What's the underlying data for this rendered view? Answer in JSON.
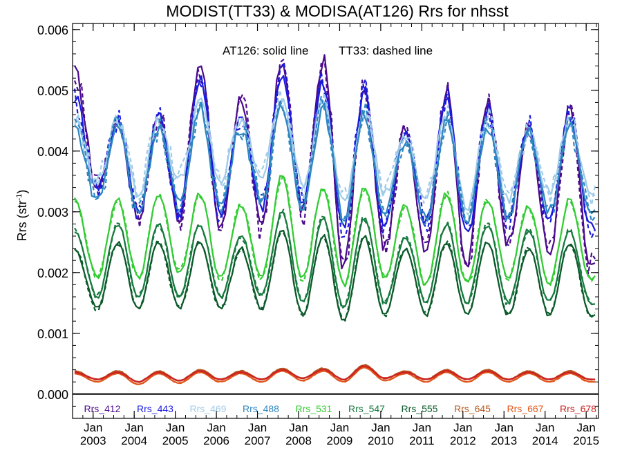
{
  "chart_data": {
    "type": "line",
    "title": "MODIST(TT33) & MODISA(AT126)  Rrs for nhsst",
    "annotation_solid": "AT126: solid line",
    "annotation_dashed": "TT33: dashed line",
    "ylabel_main": "Rrs (str",
    "ylabel_sup": "-1",
    "ylabel_close": ")",
    "xlim": [
      2002.5,
      2015.3
    ],
    "ylim": [
      -0.0004,
      0.0061
    ],
    "y_ticks": [
      {
        "value": 0.0,
        "label": "0.000"
      },
      {
        "value": 0.001,
        "label": "0.001"
      },
      {
        "value": 0.002,
        "label": "0.002"
      },
      {
        "value": 0.003,
        "label": "0.003"
      },
      {
        "value": 0.004,
        "label": "0.004"
      },
      {
        "value": 0.005,
        "label": "0.005"
      },
      {
        "value": 0.006,
        "label": "0.006"
      }
    ],
    "x_ticks": [
      {
        "value": 2003.0,
        "month": "Jan",
        "year": "2003"
      },
      {
        "value": 2004.0,
        "month": "Jan",
        "year": "2004"
      },
      {
        "value": 2005.0,
        "month": "Jan",
        "year": "2005"
      },
      {
        "value": 2006.0,
        "month": "Jan",
        "year": "2006"
      },
      {
        "value": 2007.0,
        "month": "Jan",
        "year": "2007"
      },
      {
        "value": 2008.0,
        "month": "Jan",
        "year": "2008"
      },
      {
        "value": 2009.0,
        "month": "Jan",
        "year": "2009"
      },
      {
        "value": 2010.0,
        "month": "Jan",
        "year": "2010"
      },
      {
        "value": 2011.0,
        "month": "Jan",
        "year": "2011"
      },
      {
        "value": 2012.0,
        "month": "Jan",
        "year": "2012"
      },
      {
        "value": 2013.0,
        "month": "Jan",
        "year": "2013"
      },
      {
        "value": 2014.0,
        "month": "Jan",
        "year": "2014"
      },
      {
        "value": 2015.0,
        "month": "Jan",
        "year": "2015"
      }
    ],
    "x_minor_step": 0.25,
    "y_minor_step": 0.0002,
    "zero_line": 0.0,
    "series": [
      {
        "name": "Rrs_412",
        "color": "#4b0a8c",
        "peak_years": [
          2002.55,
          2003.6,
          2004.6,
          2005.6,
          2006.6,
          2007.6,
          2008.6,
          2009.6,
          2010.6,
          2011.6,
          2012.6,
          2013.6,
          2014.6
        ],
        "peak_values": [
          0.0053,
          0.0045,
          0.0046,
          0.0054,
          0.0049,
          0.0055,
          0.0055,
          0.005,
          0.0044,
          0.005,
          0.0048,
          0.0044,
          0.0047
        ],
        "trough_years": [
          2003.1,
          2004.1,
          2005.1,
          2006.1,
          2007.1,
          2008.1,
          2009.1,
          2010.1,
          2011.1,
          2012.1,
          2013.1,
          2014.1,
          2015.1
        ],
        "trough_values": [
          0.0034,
          0.0029,
          0.0029,
          0.0027,
          0.0027,
          0.003,
          0.0021,
          0.0024,
          0.0024,
          0.0021,
          0.0025,
          0.0023,
          0.0021
        ]
      },
      {
        "name": "Rrs_443",
        "color": "#1a1adc",
        "peak_years": [
          2002.55,
          2003.6,
          2004.6,
          2005.6,
          2006.6,
          2007.6,
          2008.6,
          2009.6,
          2010.6,
          2011.6,
          2012.6,
          2013.6,
          2014.6
        ],
        "peak_values": [
          0.0049,
          0.0045,
          0.0046,
          0.0052,
          0.0046,
          0.0053,
          0.0051,
          0.005,
          0.0043,
          0.0049,
          0.0047,
          0.0044,
          0.0046
        ],
        "trough_years": [
          2003.1,
          2004.1,
          2005.1,
          2006.1,
          2007.1,
          2008.1,
          2009.1,
          2010.1,
          2011.1,
          2012.1,
          2013.1,
          2014.1,
          2015.1
        ],
        "trough_values": [
          0.0034,
          0.003,
          0.003,
          0.003,
          0.0031,
          0.0031,
          0.0027,
          0.0028,
          0.0028,
          0.0026,
          0.0029,
          0.0028,
          0.0028
        ]
      },
      {
        "name": "Rrs_469",
        "color": "#9fcbe8",
        "peak_years": [
          2002.55,
          2003.6,
          2004.6,
          2005.6,
          2006.6,
          2007.6,
          2008.6,
          2009.6,
          2010.6,
          2011.6,
          2012.6,
          2013.6,
          2014.6
        ],
        "peak_values": [
          0.0045,
          0.0045,
          0.0045,
          0.0048,
          0.0045,
          0.0049,
          0.0048,
          0.0047,
          0.0042,
          0.0046,
          0.0045,
          0.0043,
          0.0045
        ],
        "trough_years": [
          2003.1,
          2004.1,
          2005.1,
          2006.1,
          2007.1,
          2008.1,
          2009.1,
          2010.1,
          2011.1,
          2012.1,
          2013.1,
          2014.1,
          2015.1
        ],
        "trough_values": [
          0.0035,
          0.0033,
          0.0035,
          0.0035,
          0.0036,
          0.0034,
          0.0032,
          0.0033,
          0.0032,
          0.0031,
          0.0032,
          0.0033,
          0.0033
        ]
      },
      {
        "name": "Rrs_488",
        "color": "#2e86c1",
        "peak_years": [
          2002.55,
          2003.6,
          2004.6,
          2005.6,
          2006.6,
          2007.6,
          2008.6,
          2009.6,
          2010.6,
          2011.6,
          2012.6,
          2013.6,
          2014.6
        ],
        "peak_values": [
          0.0044,
          0.0044,
          0.0044,
          0.0047,
          0.0044,
          0.0047,
          0.0047,
          0.0046,
          0.0041,
          0.0045,
          0.0044,
          0.0043,
          0.0044
        ],
        "trough_years": [
          2003.1,
          2004.1,
          2005.1,
          2006.1,
          2007.1,
          2008.1,
          2009.1,
          2010.1,
          2011.1,
          2012.1,
          2013.1,
          2014.1,
          2015.1
        ],
        "trough_values": [
          0.0032,
          0.003,
          0.0031,
          0.0031,
          0.0032,
          0.0031,
          0.0029,
          0.003,
          0.0029,
          0.0028,
          0.0029,
          0.003,
          0.003
        ]
      },
      {
        "name": "Rrs_531",
        "color": "#33cc33",
        "peak_years": [
          2002.55,
          2003.6,
          2004.6,
          2005.6,
          2006.6,
          2007.6,
          2008.6,
          2009.6,
          2010.6,
          2011.6,
          2012.6,
          2013.6,
          2014.6
        ],
        "peak_values": [
          0.0032,
          0.0032,
          0.0033,
          0.0033,
          0.0031,
          0.0036,
          0.0034,
          0.0034,
          0.0031,
          0.0033,
          0.0032,
          0.0031,
          0.0032
        ],
        "trough_years": [
          2003.1,
          2004.1,
          2005.1,
          2006.1,
          2007.1,
          2008.1,
          2009.1,
          2010.1,
          2011.1,
          2012.1,
          2013.1,
          2014.1,
          2015.1
        ],
        "trough_values": [
          0.0019,
          0.0019,
          0.002,
          0.0019,
          0.0019,
          0.0019,
          0.0018,
          0.0019,
          0.0018,
          0.0018,
          0.0019,
          0.0018,
          0.0019
        ]
      },
      {
        "name": "Rrs_547",
        "color": "#167a3e",
        "peak_years": [
          2002.55,
          2003.6,
          2004.6,
          2005.6,
          2006.6,
          2007.6,
          2008.6,
          2009.6,
          2010.6,
          2011.6,
          2012.6,
          2013.6,
          2014.6
        ],
        "peak_values": [
          0.0027,
          0.0028,
          0.0028,
          0.0028,
          0.0026,
          0.003,
          0.0029,
          0.0029,
          0.0026,
          0.0028,
          0.0028,
          0.0027,
          0.0027
        ],
        "trough_years": [
          2003.1,
          2004.1,
          2005.1,
          2006.1,
          2007.1,
          2008.1,
          2009.1,
          2010.1,
          2011.1,
          2012.1,
          2013.1,
          2014.1,
          2015.1
        ],
        "trough_values": [
          0.0016,
          0.0016,
          0.0016,
          0.0016,
          0.0016,
          0.0015,
          0.0014,
          0.0015,
          0.0015,
          0.0015,
          0.0015,
          0.0015,
          0.0015
        ]
      },
      {
        "name": "Rrs_555",
        "color": "#0b5a2a",
        "peak_years": [
          2002.55,
          2003.6,
          2004.6,
          2005.6,
          2006.6,
          2007.6,
          2008.6,
          2009.6,
          2010.6,
          2011.6,
          2012.6,
          2013.6,
          2014.6
        ],
        "peak_values": [
          0.0024,
          0.0025,
          0.0025,
          0.0025,
          0.0024,
          0.0027,
          0.0026,
          0.0026,
          0.0024,
          0.0025,
          0.0025,
          0.0024,
          0.0025
        ],
        "trough_years": [
          2003.1,
          2004.1,
          2005.1,
          2006.1,
          2007.1,
          2008.1,
          2009.1,
          2010.1,
          2011.1,
          2012.1,
          2013.1,
          2014.1,
          2015.1
        ],
        "trough_values": [
          0.0014,
          0.0014,
          0.0014,
          0.0014,
          0.0014,
          0.0013,
          0.0012,
          0.0013,
          0.0013,
          0.0013,
          0.0013,
          0.0013,
          0.0013
        ]
      },
      {
        "name": "Rrs_645",
        "color": "#b35a1f",
        "peak_years": [
          2002.55,
          2003.6,
          2004.6,
          2005.6,
          2006.6,
          2007.6,
          2008.6,
          2009.6,
          2010.6,
          2011.6,
          2012.6,
          2013.6,
          2014.6
        ],
        "peak_values": [
          0.00038,
          0.00038,
          0.00038,
          0.0004,
          0.00038,
          0.00042,
          0.00042,
          0.00048,
          0.00038,
          0.0004,
          0.0004,
          0.00038,
          0.00038
        ],
        "trough_years": [
          2003.1,
          2004.1,
          2005.1,
          2006.1,
          2007.1,
          2008.1,
          2009.1,
          2010.1,
          2011.1,
          2012.1,
          2013.1,
          2014.1,
          2015.1
        ],
        "trough_values": [
          0.00024,
          0.0002,
          0.00022,
          0.00024,
          0.00024,
          0.00026,
          0.00024,
          0.00026,
          0.00024,
          0.00024,
          0.00024,
          0.00024,
          0.00024
        ]
      },
      {
        "name": "Rrs_667",
        "color": "#e0561a",
        "peak_years": [
          2002.55,
          2003.6,
          2004.6,
          2005.6,
          2006.6,
          2007.6,
          2008.6,
          2009.6,
          2010.6,
          2011.6,
          2012.6,
          2013.6,
          2014.6
        ],
        "peak_values": [
          0.00034,
          0.00034,
          0.00034,
          0.00036,
          0.00034,
          0.00038,
          0.00038,
          0.00044,
          0.00034,
          0.00036,
          0.00036,
          0.00034,
          0.00034
        ],
        "trough_years": [
          2003.1,
          2004.1,
          2005.1,
          2006.1,
          2007.1,
          2008.1,
          2009.1,
          2010.1,
          2011.1,
          2012.1,
          2013.1,
          2014.1,
          2015.1
        ],
        "trough_values": [
          0.0002,
          0.00016,
          0.00018,
          0.0002,
          0.0002,
          0.00022,
          0.0002,
          0.00022,
          0.0002,
          0.0002,
          0.0002,
          0.0002,
          0.0002
        ]
      },
      {
        "name": "Rrs_678",
        "color": "#cc2222",
        "peak_years": [
          2002.55,
          2003.6,
          2004.6,
          2005.6,
          2006.6,
          2007.6,
          2008.6,
          2009.6,
          2010.6,
          2011.6,
          2012.6,
          2013.6,
          2014.6
        ],
        "peak_values": [
          0.00036,
          0.00036,
          0.00036,
          0.00038,
          0.00036,
          0.0004,
          0.0004,
          0.00046,
          0.00036,
          0.00038,
          0.00038,
          0.00036,
          0.00036
        ],
        "trough_years": [
          2003.1,
          2004.1,
          2005.1,
          2006.1,
          2007.1,
          2008.1,
          2009.1,
          2010.1,
          2011.1,
          2012.1,
          2013.1,
          2014.1,
          2015.1
        ],
        "trough_values": [
          0.00024,
          0.0002,
          0.00022,
          0.00024,
          0.00024,
          0.00026,
          0.00024,
          0.00026,
          0.00024,
          0.00024,
          0.00024,
          0.00024,
          0.00024
        ]
      }
    ]
  }
}
